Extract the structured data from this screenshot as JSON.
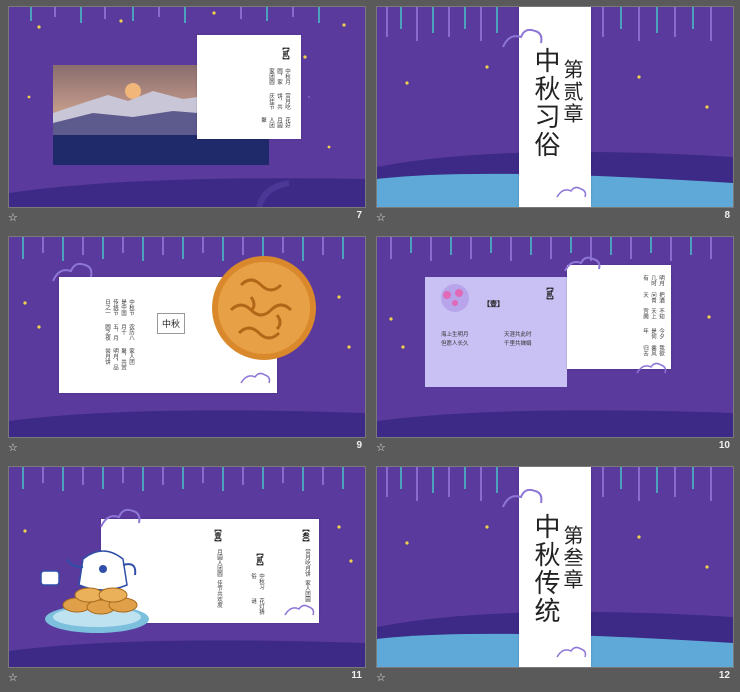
{
  "slides": [
    {
      "num": "7",
      "badge": "【贰】",
      "lines": [
        "中秋月圆，家家团圆",
        "赏月吃饼，共庆佳节",
        "花好月圆人团聚"
      ]
    },
    {
      "num": "8",
      "chapter": "第贰章",
      "title": "中秋习俗"
    },
    {
      "num": "9",
      "label": "中秋",
      "lines": [
        "中秋节是中国传统节日之一",
        "农历八月十五，月圆之夜",
        "家人团聚，共赏明月，品尝月饼"
      ]
    },
    {
      "num": "10",
      "badge1": "【壹】",
      "badge2": "【贰】",
      "lines1": [
        "海上生明月",
        "天涯共此时",
        "但愿人长久",
        "千里共婵娟"
      ],
      "lines2": [
        "明月几时有",
        "把酒问青天",
        "不知天上宫阙",
        "今夕是何年",
        "我欲乘风归去"
      ]
    },
    {
      "num": "11",
      "badge1": "【叁】",
      "badge2": "【贰】",
      "badge3": "【壹】",
      "lines1": [
        "赏月吃月饼",
        "家人团圆"
      ],
      "lines2": [
        "中秋习俗",
        "花灯猜谜"
      ],
      "lines3": [
        "月圆人团圆",
        "佳节共欢度"
      ]
    },
    {
      "num": "12",
      "chapter": "第叁章",
      "title": "中秋传统"
    }
  ],
  "colors": {
    "bg": "#5b3a9e",
    "wave1": "#3c2a86",
    "wave2": "#2e2170",
    "blue": "#5fa9d8",
    "lav": "#c9c0f3"
  }
}
